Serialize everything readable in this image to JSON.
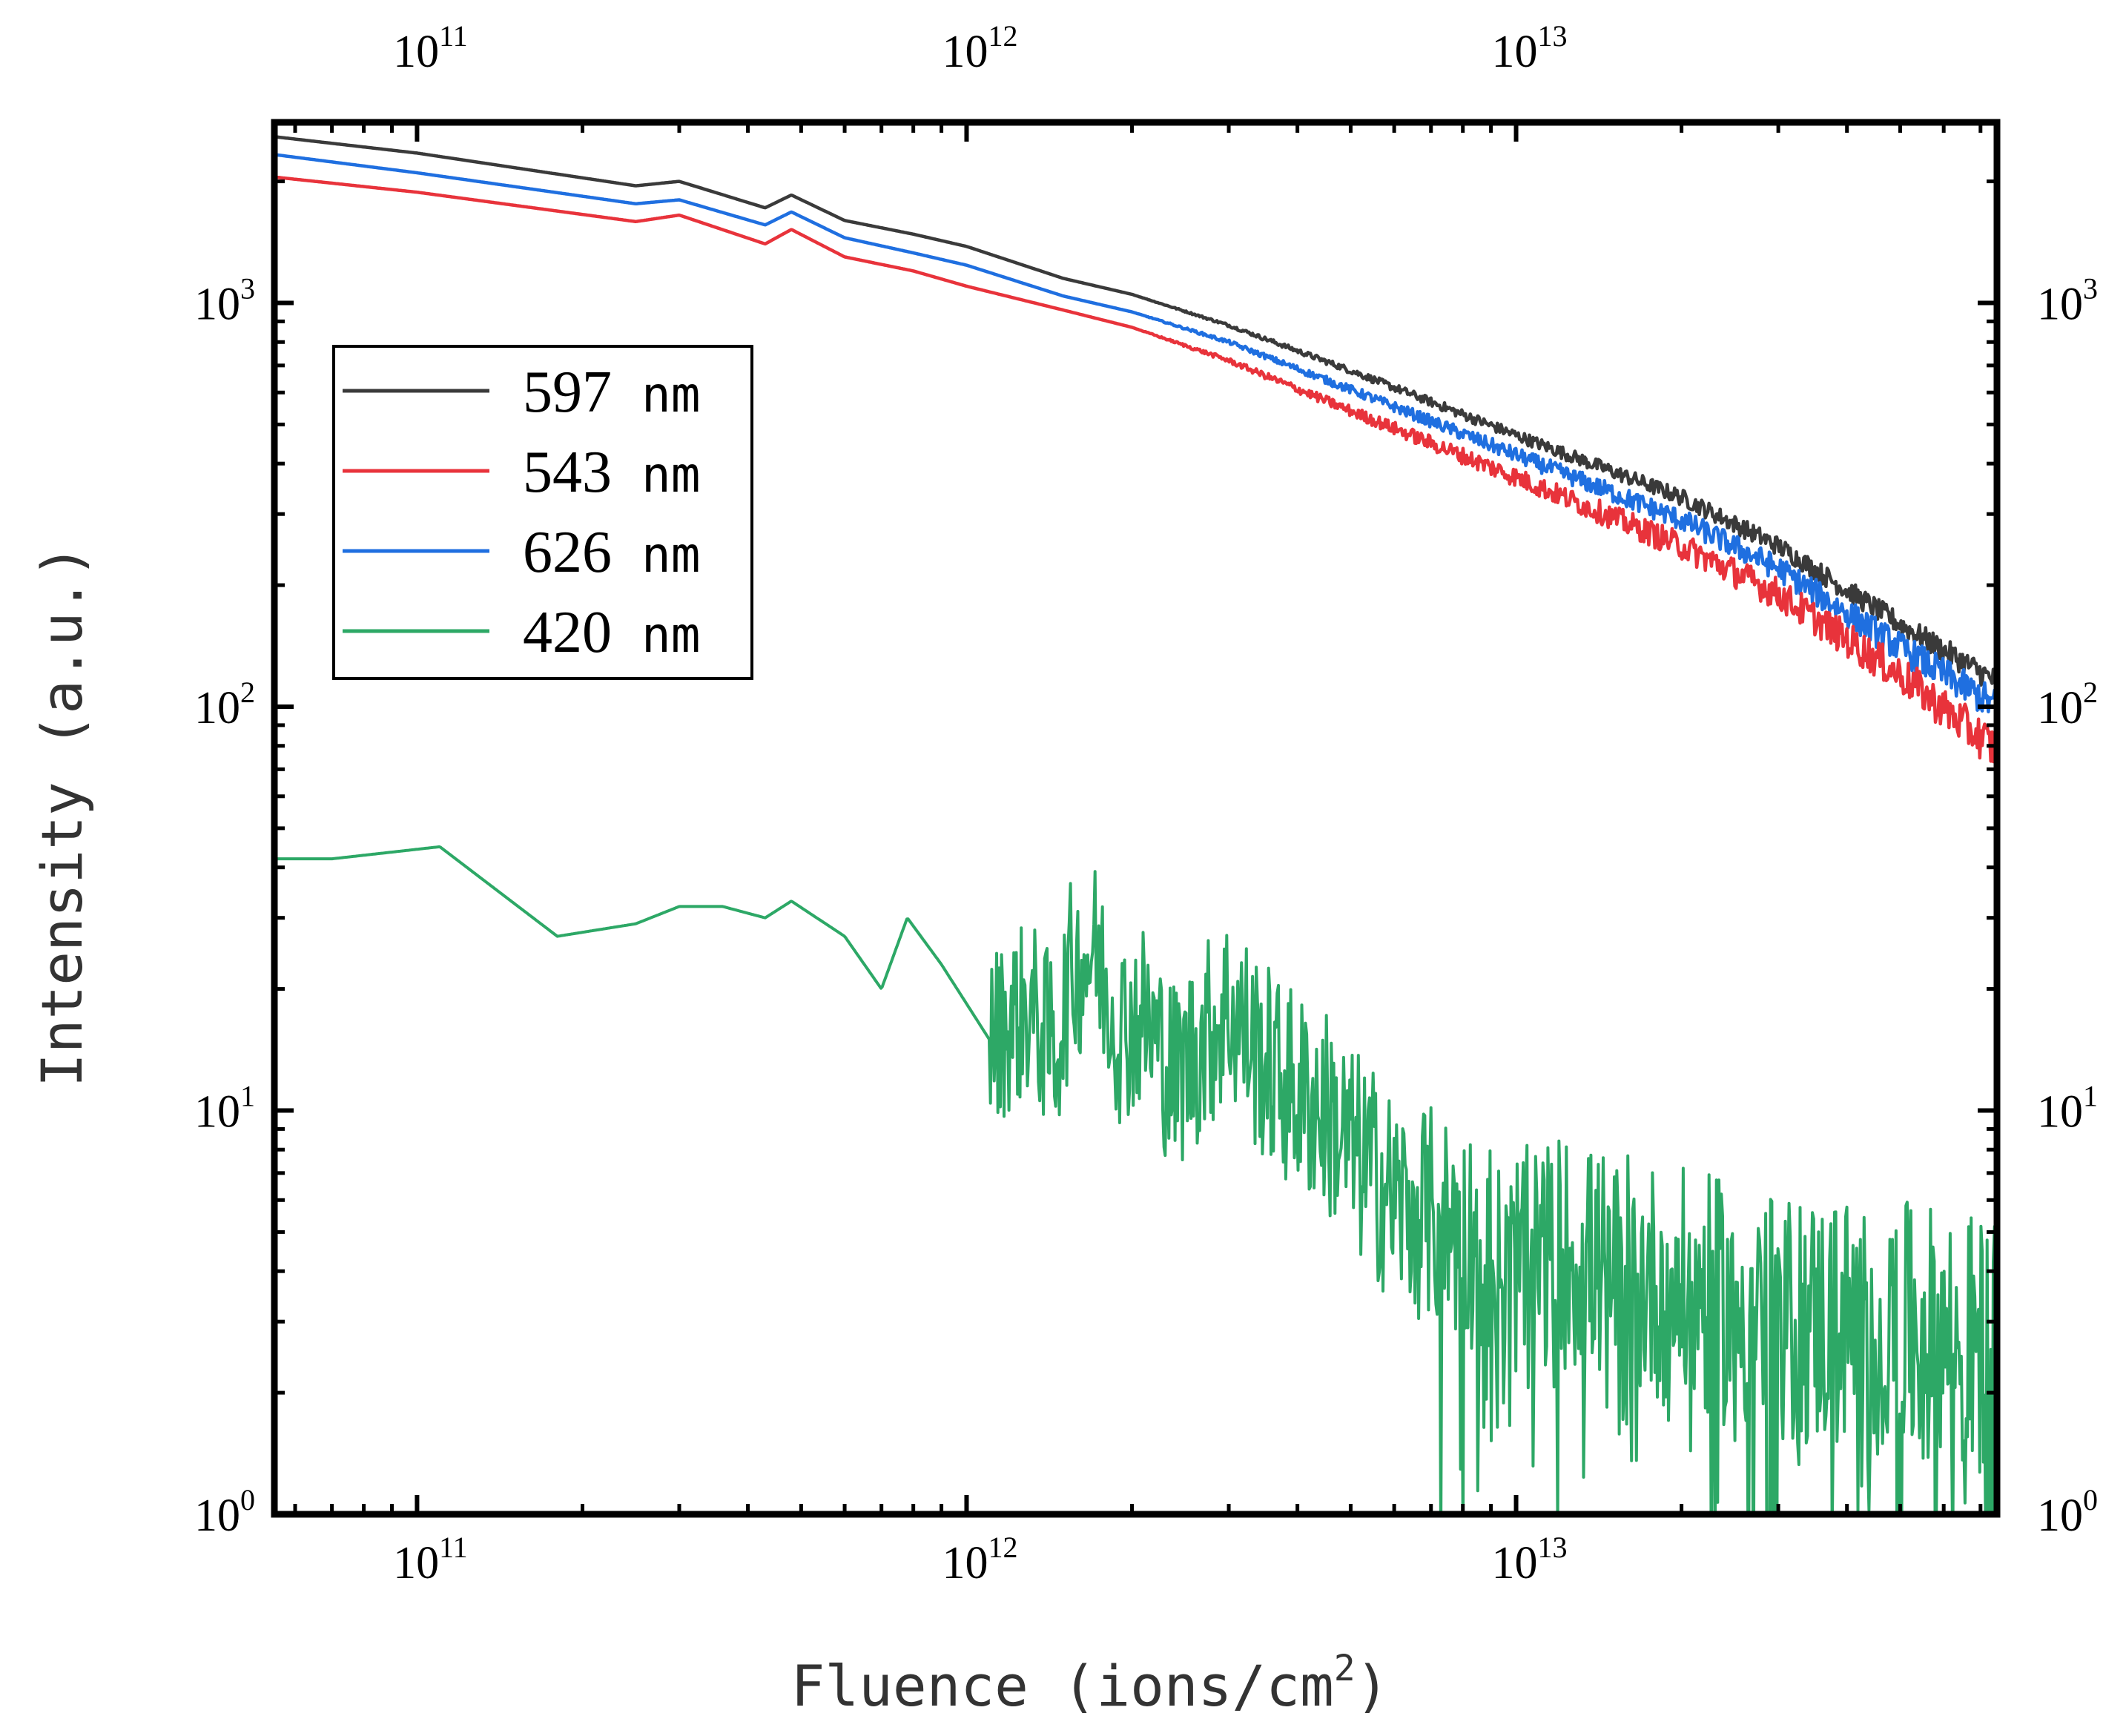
{
  "chart_data": {
    "type": "line",
    "title": "",
    "xlabel": "Fluence (ions/cm2)",
    "xlabel_parts": {
      "main": "Fluence (ions/cm",
      "sup": "2",
      "close": ")"
    },
    "ylabel": "Intensity (a.u.)",
    "xscale": "log",
    "yscale": "log",
    "xlim": [
      55000000000.0,
      75000000000000.0
    ],
    "ylim": [
      1,
      2800
    ],
    "x_ticks": [
      {
        "value": 100000000000.0,
        "base": "10",
        "exp": "11"
      },
      {
        "value": 1000000000000.0,
        "base": "10",
        "exp": "12"
      },
      {
        "value": 10000000000000.0,
        "base": "10",
        "exp": "13"
      }
    ],
    "y_ticks": [
      {
        "value": 1,
        "base": "10",
        "exp": "0"
      },
      {
        "value": 10,
        "base": "10",
        "exp": "1"
      },
      {
        "value": 100,
        "base": "10",
        "exp": "2"
      },
      {
        "value": 1000,
        "base": "10",
        "exp": "3"
      }
    ],
    "top_axis_labels": true,
    "right_axis_labels": true,
    "legend_position": "upper-left",
    "series": [
      {
        "name": "597",
        "unit": "nm",
        "color": "#3a3a3a",
        "noise_level": 0.06,
        "x": [
          55000000000.0,
          100000000000.0,
          250000000000.0,
          300000000000.0,
          430000000000.0,
          480000000000.0,
          600000000000.0,
          800000000000.0,
          1000000000000.0,
          1500000000000.0,
          2000000000000.0,
          3000000000000.0,
          5000000000000.0,
          10000000000000.0,
          20000000000000.0,
          30000000000000.0,
          50000000000000.0,
          75000000000000.0
        ],
        "y": [
          2580,
          2350,
          1950,
          2000,
          1720,
          1850,
          1600,
          1480,
          1380,
          1150,
          1050,
          880,
          680,
          470,
          330,
          250,
          160,
          115
        ]
      },
      {
        "name": "626",
        "unit": "nm",
        "color": "#1f6fe0",
        "noise_level": 0.08,
        "x": [
          55000000000.0,
          100000000000.0,
          250000000000.0,
          300000000000.0,
          430000000000.0,
          480000000000.0,
          600000000000.0,
          800000000000.0,
          1000000000000.0,
          1500000000000.0,
          2000000000000.0,
          3000000000000.0,
          5000000000000.0,
          10000000000000.0,
          20000000000000.0,
          30000000000000.0,
          50000000000000.0,
          75000000000000.0
        ],
        "y": [
          2330,
          2100,
          1760,
          1800,
          1560,
          1680,
          1450,
          1330,
          1240,
          1040,
          950,
          800,
          610,
          420,
          290,
          220,
          140,
          100
        ]
      },
      {
        "name": "543",
        "unit": "nm",
        "color": "#e8333b",
        "noise_level": 0.1,
        "x": [
          55000000000.0,
          100000000000.0,
          250000000000.0,
          300000000000.0,
          430000000000.0,
          480000000000.0,
          600000000000.0,
          800000000000.0,
          1000000000000.0,
          1500000000000.0,
          2000000000000.0,
          3000000000000.0,
          5000000000000.0,
          10000000000000.0,
          20000000000000.0,
          30000000000000.0,
          50000000000000.0,
          75000000000000.0
        ],
        "y": [
          2050,
          1880,
          1590,
          1650,
          1400,
          1520,
          1300,
          1200,
          1100,
          960,
          870,
          720,
          540,
          370,
          250,
          190,
          120,
          78
        ]
      },
      {
        "name": "420",
        "unit": "nm",
        "color": "#2da866",
        "noise_level": 0.0,
        "x": [
          55000000000.0,
          70000000000.0,
          110000000000.0,
          180000000000.0,
          250000000000.0,
          300000000000.0,
          360000000000.0,
          430000000000.0,
          480000000000.0,
          600000000000.0,
          700000000000.0,
          780000000000.0,
          900000000000.0,
          1100000000000.0,
          1300000000000.0,
          1450000000000.0,
          1550000000000.0,
          1700000000000.0,
          1900000000000.0,
          2100000000000.0,
          2400000000000.0,
          2700000000000.0,
          3000000000000.0,
          3500000000000.0,
          4000000000000.0,
          4500000000000.0,
          5000000000000.0,
          5500000000000.0,
          6000000000000.0,
          7000000000000.0,
          8000000000000.0,
          9000000000000.0,
          10000000000000.0,
          12000000000000.0,
          15000000000000.0,
          20000000000000.0,
          25000000000000.0,
          30000000000000.0,
          40000000000000.0,
          50000000000000.0,
          60000000000000.0,
          75000000000000.0
        ],
        "y": [
          42,
          42,
          45,
          27,
          29,
          32,
          32,
          30,
          33,
          27,
          20,
          30,
          23,
          15,
          18,
          14,
          22,
          25,
          16,
          17,
          12,
          15,
          18,
          13,
          11,
          10,
          8,
          7,
          6,
          5.5,
          5,
          4.5,
          4.2,
          4.5,
          4,
          3.6,
          3.3,
          3,
          3,
          2.8,
          2.7,
          2.5
        ],
        "noise_from": 1100000000000.0,
        "noise_amp": 0.22,
        "noise_amp_late": 0.34
      }
    ],
    "legend_order": [
      "597",
      "543",
      "626",
      "420"
    ]
  }
}
